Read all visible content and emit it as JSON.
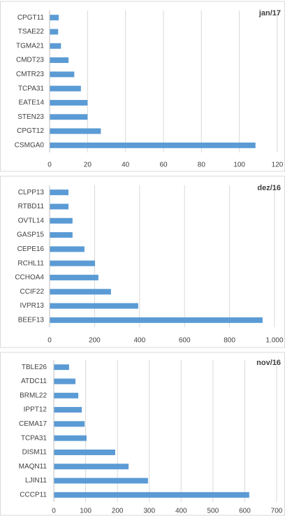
{
  "chart_data": [
    {
      "type": "bar",
      "orientation": "horizontal",
      "title": "jan/17",
      "color": "#5b9bd5",
      "grid": true,
      "categories": [
        "CPGT11",
        "TSAE22",
        "TGMA21",
        "CMDT23",
        "CMTR23",
        "TCPA31",
        "EATE14",
        "STEN23",
        "CPGT12",
        "CSMGA0"
      ],
      "values": [
        4.8,
        4.5,
        6,
        10,
        13,
        16.5,
        20,
        20,
        27,
        108.5
      ],
      "xlim": [
        0,
        120
      ],
      "xticks": [
        0,
        20,
        40,
        60,
        80,
        100,
        120
      ]
    },
    {
      "type": "bar",
      "orientation": "horizontal",
      "title": "dez/16",
      "color": "#5b9bd5",
      "grid": true,
      "categories": [
        "CLPP13",
        "RTBD11",
        "OVTL14",
        "GASP15",
        "CEPE16",
        "RCHL11",
        "CCHOA4",
        "CCIF22",
        "IVPR13",
        "BEEF13"
      ],
      "values": [
        84,
        84,
        102,
        102,
        155,
        202,
        217,
        273,
        394,
        947
      ],
      "xlim": [
        0,
        1000
      ],
      "xticks": [
        0,
        200,
        400,
        600,
        800,
        {
          "value": 1000,
          "label": "1.000"
        }
      ]
    },
    {
      "type": "bar",
      "orientation": "horizontal",
      "title": "nov/16",
      "color": "#5b9bd5",
      "grid": true,
      "categories": [
        "TBLE26",
        "ATDC11",
        "BRML22",
        "IPPT12",
        "CEMA17",
        "TCPA31",
        "DISM11",
        "MAQN11",
        "LJIN11",
        "CCCP11"
      ],
      "values": [
        48,
        68,
        77,
        88,
        97,
        103,
        193,
        235,
        296,
        614
      ],
      "xlim": [
        0,
        700
      ],
      "xticks": [
        0,
        100,
        200,
        300,
        400,
        500,
        600,
        700
      ]
    }
  ]
}
